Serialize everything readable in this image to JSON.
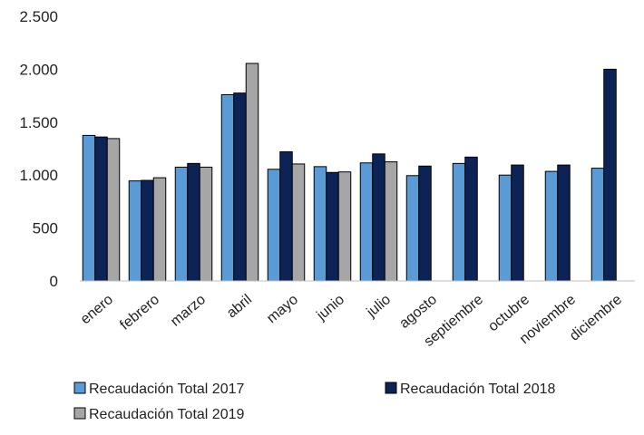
{
  "chart_data": {
    "type": "bar",
    "title": "",
    "xlabel": "",
    "ylabel": "",
    "ylim": [
      0,
      2500
    ],
    "yticks": [
      0,
      500,
      1000,
      1500,
      2000,
      2500
    ],
    "ytick_labels": [
      "0",
      "500",
      "1.000",
      "1.500",
      "2.000",
      "2.500"
    ],
    "grid": false,
    "legend_position": "bottom",
    "categories": [
      "enero",
      "febrero",
      "marzo",
      "abril",
      "mayo",
      "junio",
      "julio",
      "agosto",
      "septiembre",
      "octubre",
      "noviembre",
      "diciembre"
    ],
    "series": [
      {
        "name": "Recaudación Total 2017",
        "color": "#5b9bd5",
        "values": [
          1375,
          945,
          1075,
          1760,
          1055,
          1080,
          1115,
          995,
          1110,
          1000,
          1035,
          1065
        ]
      },
      {
        "name": "Recaudación Total 2018",
        "color": "#0d2356",
        "values": [
          1360,
          950,
          1110,
          1775,
          1220,
          1025,
          1200,
          1085,
          1170,
          1095,
          1095,
          2000
        ]
      },
      {
        "name": "Recaudación Total 2019",
        "color": "#a6a6a6",
        "values": [
          1345,
          975,
          1075,
          2055,
          1105,
          1030,
          1125,
          null,
          null,
          null,
          null,
          null
        ]
      }
    ]
  }
}
